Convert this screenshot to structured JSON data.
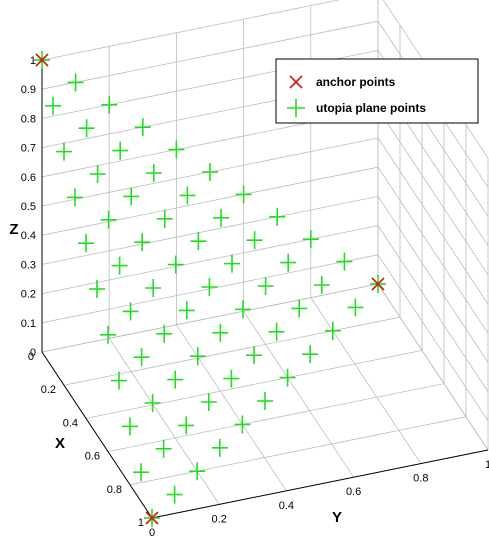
{
  "chart_data": {
    "type": "scatter",
    "title": "",
    "xlabel": "X",
    "ylabel": "Y",
    "zlabel": "Z",
    "xlim": [
      0,
      1
    ],
    "ylim": [
      0,
      1
    ],
    "zlim": [
      0,
      1
    ],
    "grid": true,
    "legend_position": "top-right",
    "x_ticks": [
      "0",
      "0.2",
      "0.4",
      "0.6",
      "0.8",
      "1"
    ],
    "y_ticks": [
      "0",
      "0.2",
      "0.4",
      "0.6",
      "0.8",
      "1"
    ],
    "z_ticks": [
      "0",
      "0.1",
      "0.2",
      "0.3",
      "0.4",
      "0.5",
      "0.6",
      "0.7",
      "0.8",
      "0.9",
      "1"
    ],
    "colors": {
      "anchor": "#cc2222",
      "utopia": "#22dd22"
    },
    "series": [
      {
        "name": "anchor points",
        "marker": "x",
        "points": [
          [
            1,
            0,
            0
          ],
          [
            0,
            1,
            0
          ],
          [
            0,
            0,
            1
          ]
        ]
      },
      {
        "name": "utopia plane points",
        "marker": "+",
        "resolution": 10,
        "description_of_set": "all (x,y,z) on the plane x+y+z=1 with step 0.1"
      }
    ]
  }
}
